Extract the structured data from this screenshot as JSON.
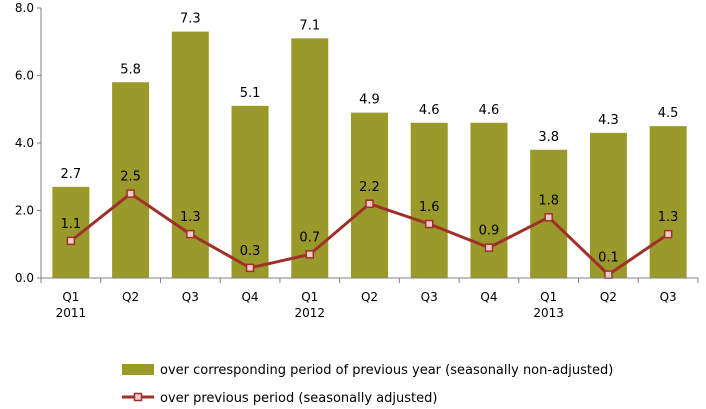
{
  "chart_data": {
    "type": "bar",
    "categories": [
      "Q1",
      "Q2",
      "Q3",
      "Q4",
      "Q1",
      "Q2",
      "Q3",
      "Q4",
      "Q1",
      "Q2",
      "Q3"
    ],
    "year_labels": [
      "2011",
      "",
      "",
      "",
      "2012",
      "",
      "",
      "",
      "2013",
      "",
      ""
    ],
    "series": [
      {
        "name": "over corresponding period of previous year (seasonally non-adjusted)",
        "type": "bar",
        "color": "#9a9a2a",
        "values": [
          2.7,
          5.8,
          7.3,
          5.1,
          7.1,
          4.9,
          4.6,
          4.6,
          3.8,
          4.3,
          4.5
        ]
      },
      {
        "name": "over previous period (seasonally adjusted)",
        "type": "line",
        "color": "#a0302a",
        "values": [
          1.1,
          2.5,
          1.3,
          0.3,
          0.7,
          2.2,
          1.6,
          0.9,
          1.8,
          0.1,
          1.3
        ]
      }
    ],
    "y_ticks": [
      "0.0",
      "2.0",
      "4.0",
      "6.0",
      "8.0"
    ],
    "ylim": [
      0,
      8
    ],
    "grid": false,
    "legend_position": "bottom"
  }
}
